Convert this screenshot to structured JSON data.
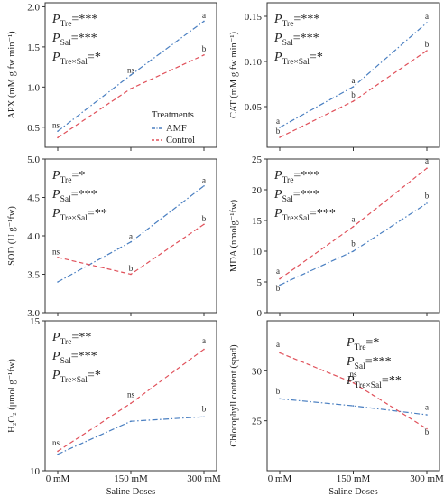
{
  "chart_data": {
    "type": "line",
    "x_categories": [
      "0 mM",
      "150 mM",
      "300 mM"
    ],
    "xlabel": "Saline Doses",
    "legend": {
      "title": "Treatments",
      "entries": [
        {
          "name": "AMF",
          "color": "#4a7fc1",
          "style": "dash-dot"
        },
        {
          "name": "Control",
          "color": "#e0505a",
          "style": "dashed"
        }
      ],
      "placement": "panel-1 bottom-right"
    },
    "panels": [
      {
        "ylabel": "APX (mM g fw min⁻¹)",
        "ylim": [
          0.25,
          2.05
        ],
        "yticks": [
          "0.5",
          "1.0",
          "1.5",
          "2.0"
        ],
        "ytick_values": [
          0.5,
          1.0,
          1.5,
          2.0
        ],
        "stats": [
          [
            "P",
            "Tre",
            "=***"
          ],
          [
            "P",
            "Sal",
            "=***"
          ],
          [
            "P",
            "Tre×Sal",
            "=*"
          ]
        ],
        "series": [
          {
            "name": "AMF",
            "values": [
              0.45,
              1.15,
              1.82
            ]
          },
          {
            "name": "Control",
            "values": [
              0.37,
              0.98,
              1.4
            ]
          }
        ],
        "labels": [
          {
            "text": "ns",
            "x": 0,
            "y": 0.49
          },
          {
            "text": "ns",
            "x": 1,
            "y": 1.18
          },
          {
            "text": "a",
            "x": 2,
            "y": 1.86
          },
          {
            "text": "b",
            "x": 2,
            "y": 1.44
          }
        ]
      },
      {
        "ylabel": "CAT (mM g fw min⁻¹)",
        "ylim": [
          0.005,
          0.165
        ],
        "yticks": [
          "0.05",
          "0.10",
          "0.15"
        ],
        "ytick_values": [
          0.05,
          0.1,
          0.15
        ],
        "stats": [
          [
            "P",
            "Tre",
            "=***"
          ],
          [
            "P",
            "Sal",
            "=***"
          ],
          [
            "P",
            "Tre×Sal",
            "=*"
          ]
        ],
        "series": [
          {
            "name": "AMF",
            "values": [
              0.027,
              0.072,
              0.143
            ]
          },
          {
            "name": "Control",
            "values": [
              0.016,
              0.056,
              0.112
            ]
          }
        ],
        "labels": [
          {
            "text": "a",
            "x": 0,
            "y": 0.031
          },
          {
            "text": "b",
            "x": 0,
            "y": 0.02
          },
          {
            "text": "a",
            "x": 1,
            "y": 0.076
          },
          {
            "text": "b",
            "x": 1,
            "y": 0.06
          },
          {
            "text": "a",
            "x": 2,
            "y": 0.147
          },
          {
            "text": "b",
            "x": 2,
            "y": 0.116
          }
        ]
      },
      {
        "ylabel": "SOD (U g⁻¹fw)",
        "ylim": [
          3.0,
          5.0
        ],
        "yticks": [
          "3.0",
          "3.5",
          "4.0",
          "4.5",
          "5.0"
        ],
        "ytick_values": [
          3.0,
          3.5,
          4.0,
          4.5,
          5.0
        ],
        "stats": [
          [
            "P",
            "Tre",
            "=*"
          ],
          [
            "P",
            "Sal",
            "=***"
          ],
          [
            "P",
            "Tre×Sal",
            "=**"
          ]
        ],
        "series": [
          {
            "name": "AMF",
            "values": [
              3.4,
              3.92,
              4.65
            ]
          },
          {
            "name": "Control",
            "values": [
              3.72,
              3.5,
              4.15
            ]
          }
        ],
        "labels": [
          {
            "text": "ns",
            "x": 0,
            "y": 3.76
          },
          {
            "text": "a",
            "x": 1,
            "y": 3.96
          },
          {
            "text": "b",
            "x": 1,
            "y": 3.54
          },
          {
            "text": "a",
            "x": 2,
            "y": 4.69
          },
          {
            "text": "b",
            "x": 2,
            "y": 4.19
          }
        ]
      },
      {
        "ylabel": "MDA (nmolg⁻¹fw)",
        "ylim": [
          0,
          25
        ],
        "yticks": [
          "0",
          "5",
          "10",
          "15",
          "20",
          "25"
        ],
        "ytick_values": [
          0,
          5,
          10,
          15,
          20,
          25
        ],
        "stats": [
          [
            "P",
            "Tre",
            "=***"
          ],
          [
            "P",
            "Sal",
            "=***"
          ],
          [
            "P",
            "Tre×Sal",
            "=***"
          ]
        ],
        "series": [
          {
            "name": "AMF",
            "values": [
              4.5,
              10.0,
              17.8
            ]
          },
          {
            "name": "Control",
            "values": [
              5.5,
              14.0,
              23.5
            ]
          }
        ],
        "labels": [
          {
            "text": "a",
            "x": 0,
            "y": 6.3
          },
          {
            "text": "b",
            "x": 0,
            "y": 3.5
          },
          {
            "text": "a",
            "x": 1,
            "y": 14.8
          },
          {
            "text": "b",
            "x": 1,
            "y": 10.8
          },
          {
            "text": "a",
            "x": 2,
            "y": 24.3
          },
          {
            "text": "b",
            "x": 2,
            "y": 18.6
          }
        ]
      },
      {
        "ylabel": "H₂O₂ (μmol g⁻¹fw)",
        "ylim": [
          10,
          15
        ],
        "yticks": [
          "10",
          "15"
        ],
        "ytick_values": [
          10,
          15
        ],
        "stats": [
          [
            "P",
            "Tre",
            "=**"
          ],
          [
            "P",
            "Sal",
            "=***"
          ],
          [
            "P",
            "Tre×Sal",
            "=*"
          ]
        ],
        "series": [
          {
            "name": "AMF",
            "values": [
              10.55,
              11.65,
              11.8
            ]
          },
          {
            "name": "Control",
            "values": [
              10.65,
              12.25,
              14.05
            ]
          }
        ],
        "labels": [
          {
            "text": "ns",
            "x": 0,
            "y": 10.85
          },
          {
            "text": "ns",
            "x": 1,
            "y": 12.45
          },
          {
            "text": "a",
            "x": 2,
            "y": 14.25
          },
          {
            "text": "b",
            "x": 2,
            "y": 11.97
          }
        ]
      },
      {
        "ylabel": "Chlorophyll  content (spad)",
        "ylim": [
          20,
          35
        ],
        "yticks": [
          "25",
          "30"
        ],
        "ytick_values": [
          25,
          30
        ],
        "stats": [
          [
            "P",
            "Tre",
            "=*"
          ],
          [
            "P",
            "Sal",
            "=***"
          ],
          [
            "P",
            "Tre×Sal",
            "=**"
          ]
        ],
        "series": [
          {
            "name": "AMF",
            "values": [
              27.2,
              26.5,
              25.6
            ]
          },
          {
            "name": "Control",
            "values": [
              31.8,
              28.8,
              24.2
            ]
          }
        ],
        "labels": [
          {
            "text": "a",
            "x": 0,
            "y": 32.4
          },
          {
            "text": "b",
            "x": 0,
            "y": 27.7
          },
          {
            "text": "ns",
            "x": 1,
            "y": 29.4
          },
          {
            "text": "a",
            "x": 2,
            "y": 26.1
          },
          {
            "text": "b",
            "x": 2,
            "y": 23.6
          }
        ]
      }
    ]
  }
}
